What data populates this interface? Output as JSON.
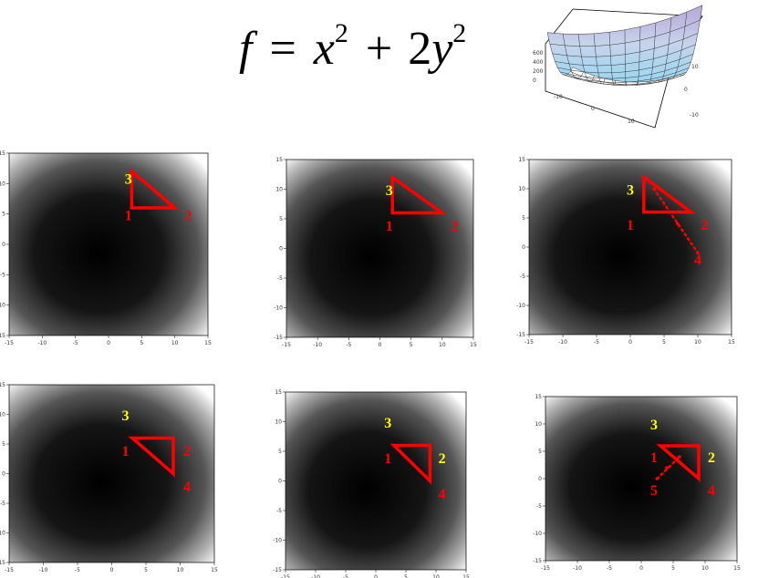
{
  "formula": {
    "lhs": "f",
    "eq": "=",
    "x": "x",
    "plus": "+",
    "coef": "2",
    "y": "y",
    "exp": "2"
  },
  "surface": {
    "z_ticks": [
      "600",
      "400",
      "200",
      "0"
    ],
    "x_ticks": [
      "-10",
      "0",
      "10"
    ],
    "y_ticks": [
      "10",
      "0",
      "-10"
    ]
  },
  "axis_ticks": [
    "-15",
    "-10",
    "-5",
    "0",
    "5",
    "10",
    "15"
  ],
  "colors": {
    "vertex_red": "#ff0000",
    "vertex_yellow": "#ffff00"
  },
  "panels": [
    {
      "name": "panel-1",
      "triangle": [
        [
          3.5,
          12
        ],
        [
          3.5,
          6
        ],
        [
          10,
          6
        ]
      ],
      "dotted": [],
      "labels": [
        {
          "text": "1",
          "x": 3,
          "y": 4,
          "color": "vertex_red"
        },
        {
          "text": "2",
          "x": 12,
          "y": 4,
          "color": "vertex_red"
        },
        {
          "text": "3",
          "x": 3,
          "y": 10,
          "color": "vertex_yellow"
        }
      ]
    },
    {
      "name": "panel-2",
      "triangle": [
        [
          2,
          12
        ],
        [
          2,
          6
        ],
        [
          10,
          6
        ]
      ],
      "dotted": [],
      "labels": [
        {
          "text": "1",
          "x": 1.5,
          "y": 3,
          "color": "vertex_red"
        },
        {
          "text": "2",
          "x": 12,
          "y": 3,
          "color": "vertex_red"
        },
        {
          "text": "3",
          "x": 1.5,
          "y": 9,
          "color": "vertex_yellow"
        }
      ]
    },
    {
      "name": "panel-3",
      "triangle": [
        [
          2,
          12
        ],
        [
          2,
          6
        ],
        [
          9,
          6
        ]
      ],
      "dotted": [
        [
          3.5,
          10
        ],
        [
          7,
          4
        ],
        [
          10,
          -1
        ]
      ],
      "labels": [
        {
          "text": "1",
          "x": 0,
          "y": 3,
          "color": "vertex_red"
        },
        {
          "text": "2",
          "x": 11,
          "y": 3,
          "color": "vertex_red"
        },
        {
          "text": "3",
          "x": 0,
          "y": 9,
          "color": "vertex_yellow"
        },
        {
          "text": "4",
          "x": 10,
          "y": -3,
          "color": "vertex_red"
        }
      ]
    },
    {
      "name": "panel-4",
      "triangle": [
        [
          3,
          6
        ],
        [
          9,
          6
        ],
        [
          9,
          0
        ]
      ],
      "dotted": [],
      "labels": [
        {
          "text": "1",
          "x": 2,
          "y": 3,
          "color": "vertex_red"
        },
        {
          "text": "2",
          "x": 11,
          "y": 3,
          "color": "vertex_red"
        },
        {
          "text": "3",
          "x": 2,
          "y": 9,
          "color": "vertex_yellow"
        },
        {
          "text": "4",
          "x": 11,
          "y": -3,
          "color": "vertex_red"
        }
      ]
    },
    {
      "name": "panel-5",
      "triangle": [
        [
          3,
          6
        ],
        [
          9,
          6
        ],
        [
          9,
          0
        ]
      ],
      "dotted": [],
      "labels": [
        {
          "text": "1",
          "x": 2,
          "y": 3,
          "color": "vertex_red"
        },
        {
          "text": "2",
          "x": 11,
          "y": 3,
          "color": "vertex_yellow"
        },
        {
          "text": "3",
          "x": 2,
          "y": 9,
          "color": "vertex_yellow"
        },
        {
          "text": "4",
          "x": 11,
          "y": -3,
          "color": "vertex_red"
        }
      ]
    },
    {
      "name": "panel-6",
      "triangle": [
        [
          3,
          6
        ],
        [
          9,
          6
        ],
        [
          9,
          0
        ]
      ],
      "dotted": [
        [
          2.5,
          0
        ],
        [
          4,
          2
        ],
        [
          6,
          4
        ]
      ],
      "labels": [
        {
          "text": "1",
          "x": 2,
          "y": 3,
          "color": "vertex_red"
        },
        {
          "text": "2",
          "x": 11,
          "y": 3,
          "color": "vertex_yellow"
        },
        {
          "text": "3",
          "x": 2,
          "y": 9,
          "color": "vertex_yellow"
        },
        {
          "text": "4",
          "x": 11,
          "y": -3,
          "color": "vertex_red"
        },
        {
          "text": "5",
          "x": 2,
          "y": -3,
          "color": "vertex_red"
        }
      ]
    }
  ]
}
